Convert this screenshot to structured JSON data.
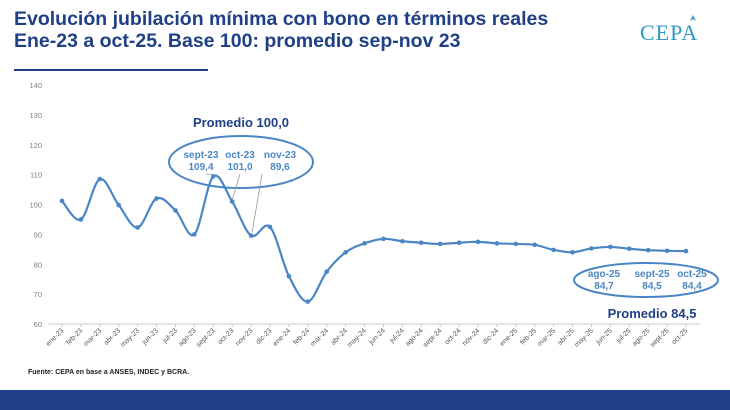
{
  "header": {
    "title_line1": "Evolución jubilación mínima con bono en términos reales",
    "title_line2": "Ene-23 a oct-25. Base 100: promedio sep-nov 23",
    "logo": "CEPA"
  },
  "footer": {
    "source": "Fuente: CEPA en base a ANSES, INDEC y BCRA."
  },
  "chart_data": {
    "type": "line",
    "ylim": [
      60,
      140
    ],
    "yticks": [
      60,
      70,
      80,
      90,
      100,
      110,
      120,
      130,
      140
    ],
    "grid": false,
    "line_color": "#4a86c5",
    "categories": [
      "ene-23",
      "feb-23",
      "mar-23",
      "abr-23",
      "may-23",
      "jun-23",
      "jul-23",
      "ago-23",
      "sept-23",
      "oct-23",
      "nov-23",
      "dic-23",
      "ene-24",
      "feb-24",
      "mar-24",
      "abr-24",
      "may-24",
      "jun-24",
      "jul-24",
      "ago-24",
      "sept-24",
      "oct-24",
      "nov-24",
      "dic-24",
      "ene-25",
      "feb-25",
      "mar-25",
      "abr-25",
      "may-25",
      "jun-25",
      "jul-25",
      "ago-25",
      "sept-25",
      "oct-25"
    ],
    "values": [
      101.2,
      95.0,
      108.5,
      99.8,
      92.3,
      102.0,
      98.0,
      90.0,
      109.4,
      101.0,
      89.6,
      92.5,
      76.0,
      67.5,
      77.5,
      84.0,
      87.0,
      88.5,
      87.7,
      87.2,
      86.8,
      87.2,
      87.5,
      87.0,
      86.8,
      86.5,
      84.8,
      84.0,
      85.3,
      85.8,
      85.2,
      84.7,
      84.5,
      84.4
    ],
    "annotations": {
      "group1": {
        "title": "Promedio 100,0",
        "labels": [
          {
            "month": "sept-23",
            "value": "109,4"
          },
          {
            "month": "oct-23",
            "value": "101,0"
          },
          {
            "month": "nov-23",
            "value": "89,6"
          }
        ]
      },
      "group2": {
        "title": "Promedio 84,5",
        "labels": [
          {
            "month": "ago-25",
            "value": "84,7"
          },
          {
            "month": "sept-25",
            "value": "84,5"
          },
          {
            "month": "oct-25",
            "value": "84,4"
          }
        ]
      }
    }
  }
}
